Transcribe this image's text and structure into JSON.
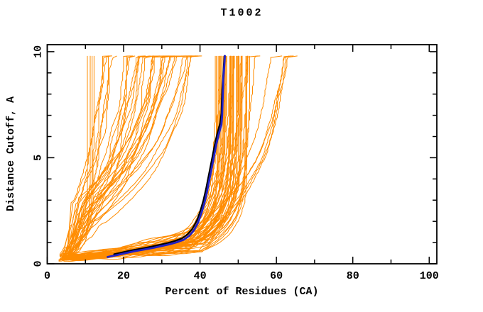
{
  "page": {
    "background": "#ffffff"
  },
  "chart_data": {
    "type": "line",
    "title": "T1002",
    "xlabel": "Percent of Residues (CA)",
    "ylabel": "Distance Cutoff, A",
    "xlim": [
      0,
      102
    ],
    "ylim": [
      0,
      10.33
    ],
    "grid": false,
    "legend": "none",
    "x_ticks": {
      "major": [
        {
          "value": 0,
          "label": "0"
        },
        {
          "value": 20,
          "label": "20"
        },
        {
          "value": 40,
          "label": "40"
        },
        {
          "value": 60,
          "label": "60"
        },
        {
          "value": 80,
          "label": "80"
        },
        {
          "value": 100,
          "label": "100"
        }
      ],
      "minor": [
        10,
        30,
        50,
        70,
        90
      ]
    },
    "y_ticks": {
      "major": [
        {
          "value": 0,
          "label": "0"
        },
        {
          "value": 5,
          "label": "5"
        },
        {
          "value": 10,
          "label": "10"
        }
      ],
      "minor": [
        1,
        2,
        3,
        4,
        6,
        7,
        8,
        9
      ]
    },
    "series": [
      {
        "name": "highlight-model-black",
        "color": "#000000",
        "width": 2.2,
        "points": [
          [
            17.5,
            0.45
          ],
          [
            20,
            0.55
          ],
          [
            22.5,
            0.65
          ],
          [
            25,
            0.73
          ],
          [
            27.5,
            0.82
          ],
          [
            29.5,
            0.9
          ],
          [
            31.5,
            0.98
          ],
          [
            33.5,
            1.08
          ],
          [
            35.3,
            1.2
          ],
          [
            36.8,
            1.4
          ],
          [
            38,
            1.65
          ],
          [
            39.2,
            2.05
          ],
          [
            40.1,
            2.5
          ],
          [
            40.9,
            3.0
          ],
          [
            41.6,
            3.55
          ],
          [
            42.2,
            4.1
          ],
          [
            42.8,
            4.65
          ],
          [
            43.4,
            5.2
          ],
          [
            44.0,
            5.75
          ],
          [
            44.6,
            6.2
          ],
          [
            45.3,
            6.65
          ],
          [
            45.6,
            7.1
          ],
          [
            45.7,
            7.65
          ],
          [
            45.8,
            8.2
          ],
          [
            46.0,
            8.75
          ],
          [
            46.2,
            9.3
          ],
          [
            46.4,
            9.8
          ]
        ]
      },
      {
        "name": "highlight-model-blue",
        "color": "#2121c8",
        "width": 2.8,
        "points": [
          [
            15.8,
            0.32
          ],
          [
            18,
            0.4
          ],
          [
            20.5,
            0.5
          ],
          [
            23,
            0.6
          ],
          [
            25.5,
            0.68
          ],
          [
            28,
            0.76
          ],
          [
            30,
            0.84
          ],
          [
            32,
            0.92
          ],
          [
            34,
            1.02
          ],
          [
            35.8,
            1.14
          ],
          [
            37.2,
            1.32
          ],
          [
            38.4,
            1.58
          ],
          [
            39.5,
            1.95
          ],
          [
            40.4,
            2.4
          ],
          [
            41.2,
            2.9
          ],
          [
            41.9,
            3.45
          ],
          [
            42.5,
            4.0
          ],
          [
            43.1,
            4.55
          ],
          [
            43.7,
            5.1
          ],
          [
            44.3,
            5.65
          ],
          [
            44.9,
            6.1
          ],
          [
            45.6,
            6.55
          ],
          [
            45.8,
            7.0
          ],
          [
            45.9,
            7.55
          ],
          [
            46.0,
            8.1
          ],
          [
            46.1,
            8.65
          ],
          [
            46.3,
            9.2
          ],
          [
            46.5,
            9.8
          ]
        ]
      }
    ],
    "ensemble": {
      "name": "server-model-curves",
      "color": "#ff8c00",
      "width": 1,
      "seed": 7,
      "count": 99,
      "start_x": [
        3,
        6.5
      ],
      "start_y": [
        0.15,
        0.45
      ],
      "top_y": 9.8,
      "groups": [
        {
          "name": "left-vertical-bundle",
          "count": 5,
          "top_x": [
            10.5,
            13.5
          ],
          "knee_y": [
            0.9,
            1.5
          ],
          "style": "vertical"
        },
        {
          "name": "diagonal-fan",
          "count": 34,
          "top_x": [
            14,
            41
          ],
          "knee_y": [
            1.2,
            3.2
          ],
          "style": "diagonal"
        },
        {
          "name": "dense-band",
          "count": 52,
          "top_x": [
            43.5,
            53
          ],
          "knee_y": [
            0.55,
            1.25
          ],
          "style": "steep"
        },
        {
          "name": "right-tail",
          "count": 8,
          "top_x": [
            54,
            67
          ],
          "knee_y": [
            1.0,
            1.9
          ],
          "style": "drift"
        }
      ]
    }
  }
}
